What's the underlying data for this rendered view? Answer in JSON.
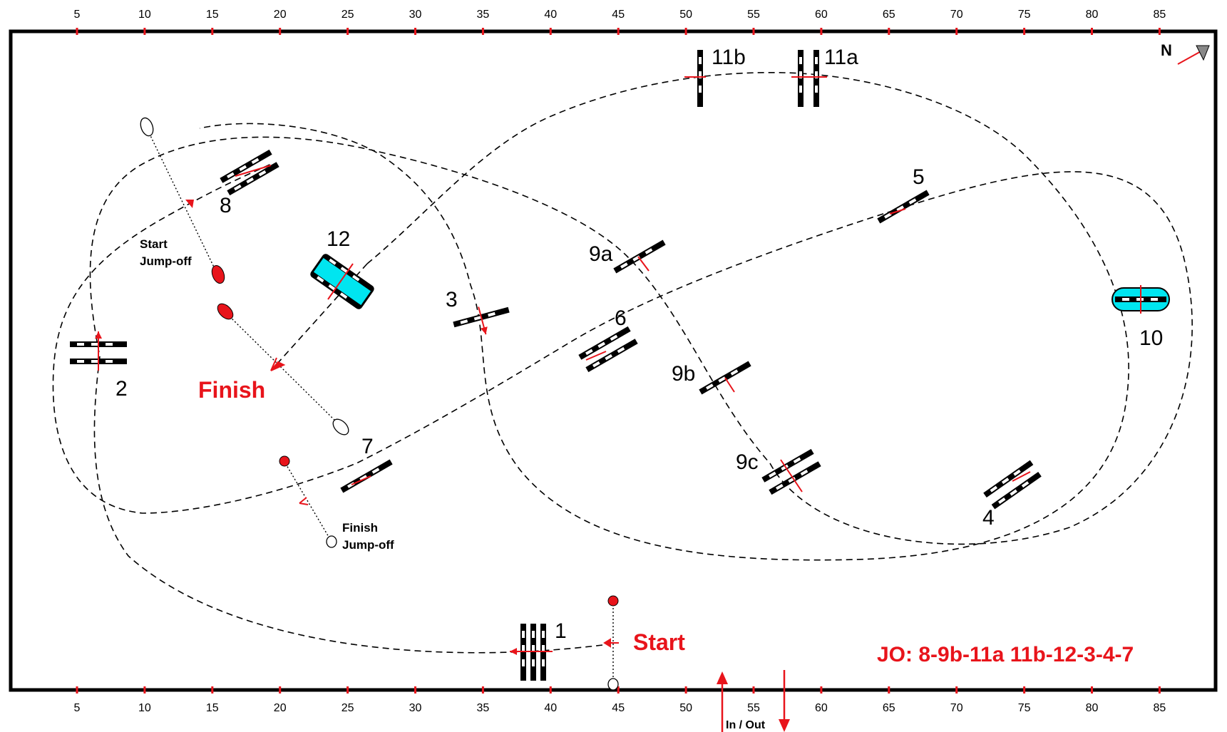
{
  "scale": {
    "top": [
      "5",
      "10",
      "15",
      "20",
      "25",
      "30",
      "35",
      "40",
      "45",
      "50",
      "55",
      "60",
      "65",
      "70",
      "75",
      "80",
      "85"
    ],
    "bottom": [
      "5",
      "10",
      "15",
      "20",
      "25",
      "30",
      "35",
      "40",
      "45",
      "50",
      "55",
      "60",
      "65",
      "70",
      "75",
      "80",
      "85"
    ]
  },
  "north_label": "N",
  "fences": [
    {
      "id": "fence-1",
      "label": "1"
    },
    {
      "id": "fence-2",
      "label": "2"
    },
    {
      "id": "fence-3",
      "label": "3"
    },
    {
      "id": "fence-4",
      "label": "4"
    },
    {
      "id": "fence-5",
      "label": "5"
    },
    {
      "id": "fence-6",
      "label": "6"
    },
    {
      "id": "fence-7",
      "label": "7"
    },
    {
      "id": "fence-8",
      "label": "8"
    },
    {
      "id": "fence-9a",
      "label": "9a"
    },
    {
      "id": "fence-9b",
      "label": "9b"
    },
    {
      "id": "fence-9c",
      "label": "9c"
    },
    {
      "id": "fence-10",
      "label": "10"
    },
    {
      "id": "fence-11a",
      "label": "11a"
    },
    {
      "id": "fence-11b",
      "label": "11b"
    },
    {
      "id": "fence-12",
      "label": "12"
    }
  ],
  "labels": {
    "start": "Start",
    "finish": "Finish",
    "start_jumpoff_1": "Start",
    "start_jumpoff_2": "Jump-off",
    "finish_jumpoff_1": "Finish",
    "finish_jumpoff_2": "Jump-off",
    "in_out": "In / Out",
    "jump_off_route": "JO: 8-9b-11a 11b-12-3-4-7"
  },
  "colors": {
    "accent_red": "#e8141b",
    "water_cyan": "#00e5f0",
    "border": "#000000"
  }
}
